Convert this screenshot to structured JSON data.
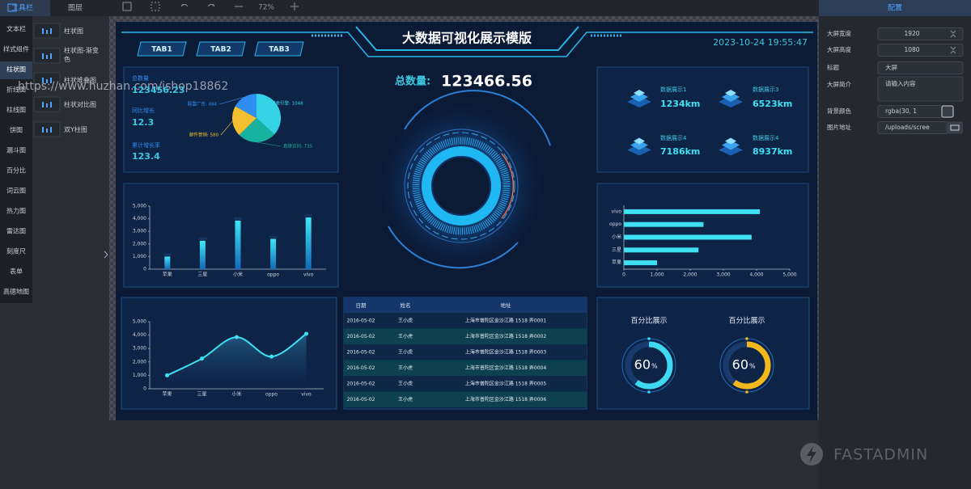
{
  "sidebar": {
    "tabs": [
      "工具栏",
      "图层"
    ],
    "categories": [
      "文本栏",
      "样式组件",
      "柱状图",
      "折线图",
      "柱线图",
      "饼图",
      "漏斗图",
      "百分比",
      "词云图",
      "热力图",
      "雷达图",
      "刻度尺",
      "表单",
      "高德地图"
    ],
    "components": [
      "柱状图",
      "柱状图-渐变色",
      "柱状堆叠图",
      "柱状对比图",
      "双Y柱图"
    ]
  },
  "toolbar": {
    "zoom": "72%"
  },
  "overlay_text": "https://www.huzhan.com/ishop18862",
  "dashboard": {
    "title": "大数据可视化展示模版",
    "tabs": [
      "TAB1",
      "TAB2",
      "TAB3"
    ],
    "datetime": "2023-10-24 19:55:47",
    "total": {
      "label": "总数量:",
      "value": "123466.56"
    },
    "stats": [
      {
        "label": "总数量",
        "value": "123456.23"
      },
      {
        "label": "同比增长",
        "value": "12.3"
      },
      {
        "label": "累计增长率",
        "value": "123.4"
      }
    ],
    "pie": {
      "type": "pie",
      "categories": [
        "搜索引擎",
        "直接访问",
        "邮件营销",
        "联盟广告"
      ],
      "values": [
        1048,
        735,
        580,
        484
      ],
      "value_labels": [
        "搜索引擎: 1048",
        "直接访问: 735",
        "邮件营销: 580",
        "联盟广告: 484"
      ],
      "colors": [
        "#35d3e6",
        "#17b3a0",
        "#f4c02f",
        "#2e8ef2"
      ]
    },
    "cards": [
      {
        "label": "数据展示1",
        "value": "1234km"
      },
      {
        "label": "数据展示3",
        "value": "6523km"
      },
      {
        "label": "数据展示4",
        "value": "7186km"
      },
      {
        "label": "数据展示4",
        "value": "8937km"
      }
    ],
    "bar": {
      "type": "bar",
      "categories": [
        "苹果",
        "三星",
        "小米",
        "oppo",
        "vivo"
      ],
      "values": [
        1000,
        2250,
        3850,
        2400,
        4100
      ],
      "color": "#2fc8ef",
      "ylim": [
        0,
        5000
      ],
      "yticks": [
        0,
        {
          "value": 1000,
          "label": "1,000"
        },
        {
          "value": 2000,
          "label": "2,000"
        },
        {
          "value": 3000,
          "label": "3,000"
        },
        {
          "value": 4000,
          "label": "4,000"
        },
        {
          "value": 5000,
          "label": "5,000"
        }
      ]
    },
    "hbar": {
      "type": "hbar",
      "categories": [
        "vivo",
        "oppo",
        "小米",
        "三星",
        "苹果"
      ],
      "values": [
        4100,
        2400,
        3850,
        2250,
        1000
      ],
      "color": "#3ee0f2",
      "xlim": [
        0,
        5000
      ],
      "xticks": [
        0,
        {
          "value": 1000,
          "label": "1,000"
        },
        {
          "value": 2000,
          "label": "2,000"
        },
        {
          "value": 3000,
          "label": "3,000"
        },
        {
          "value": 4000,
          "label": "4,000"
        },
        {
          "value": 5000,
          "label": "5,000"
        }
      ]
    },
    "line": {
      "type": "line",
      "categories": [
        "苹果",
        "三星",
        "小米",
        "oppo",
        "vivo"
      ],
      "values": [
        1000,
        2250,
        3850,
        2400,
        4100
      ],
      "color": "#3ee0f2",
      "ylim": [
        0,
        5000
      ],
      "yticks": [
        0,
        {
          "value": 1000,
          "label": "1,000"
        },
        {
          "value": 2000,
          "label": "2,000"
        },
        {
          "value": 3000,
          "label": "3,000"
        },
        {
          "value": 4000,
          "label": "4,000"
        },
        {
          "value": 5000,
          "label": "5,000"
        }
      ]
    },
    "table": {
      "headers": [
        "日期",
        "姓名",
        "地址"
      ],
      "rows": [
        [
          "2016-05-02",
          "王小虎",
          "上海市普陀区金沙江路 1518 弄0001"
        ],
        [
          "2016-05-02",
          "王小虎",
          "上海市普陀区金沙江路 1518 弄0002"
        ],
        [
          "2016-05-02",
          "王小虎",
          "上海市普陀区金沙江路 1518 弄0003"
        ],
        [
          "2016-05-02",
          "王小虎",
          "上海市普陀区金沙江路 1518 弄0004"
        ],
        [
          "2016-05-02",
          "王小虎",
          "上海市普陀区金沙江路 1518 弄0005"
        ],
        [
          "2016-05-02",
          "王小虎",
          "上海市普陀区金沙江路 1518 弄0006"
        ]
      ]
    },
    "gauges": [
      {
        "title": "百分比展示",
        "value": 60,
        "unit": "%",
        "color": "#3ed8f0"
      },
      {
        "title": "百分比展示",
        "value": 60,
        "unit": "%",
        "color": "#f4b81c"
      }
    ]
  },
  "config": {
    "title": "配置",
    "fields": [
      {
        "label": "大屏宽度",
        "value": "1920"
      },
      {
        "label": "大屏高度",
        "value": "1080"
      },
      {
        "label": "标题",
        "value": "大屏"
      },
      {
        "label": "大屏简介",
        "value": "请输入内容"
      },
      {
        "label": "背景颜色",
        "value": "rgba(30, 1"
      },
      {
        "label": "图片地址",
        "value": "/uploads/scree"
      }
    ]
  },
  "brand": "FASTADMIN"
}
